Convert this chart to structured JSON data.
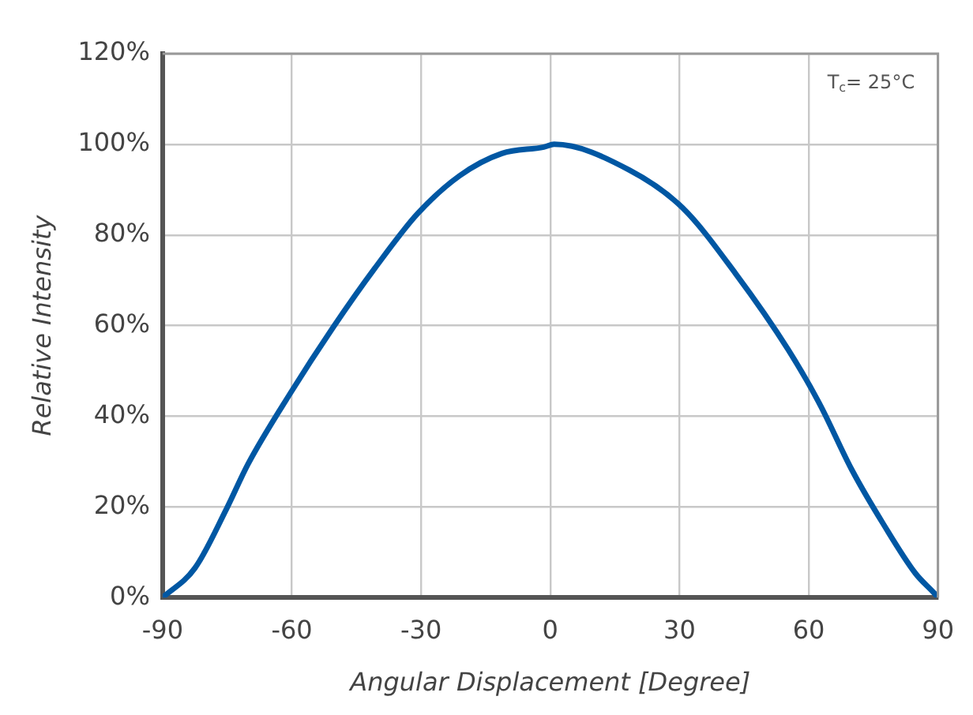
{
  "chart_data": {
    "type": "line",
    "xlabel": "Angular Displacement [Degree]",
    "ylabel": "Relative Intensity",
    "x": [
      -90,
      -82.5,
      -75.1,
      -70.2,
      -60.4,
      -50.5,
      -40.7,
      -30.8,
      -21,
      -11.2,
      -1.5,
      0.9,
      18.4,
      30.7,
      43,
      55.3,
      62.6,
      70,
      77.4,
      84.8,
      89.1,
      90
    ],
    "series": [
      {
        "color": "#0057a3",
        "values": [
          0,
          6.5,
          19.7,
          29.4,
          45,
          59.5,
          72.7,
          84.7,
          93.1,
          98,
          99.4,
          100,
          94.3,
          86,
          71.5,
          54.6,
          42.6,
          28.2,
          16.1,
          5.3,
          1,
          0
        ]
      }
    ],
    "xlim": [
      -90,
      90
    ],
    "xticks": [
      -90,
      -60,
      -30,
      0,
      30,
      60,
      90
    ],
    "ylim": [
      0,
      120
    ],
    "yticks": [
      {
        "value": 0,
        "label": "0%"
      },
      {
        "value": 20,
        "label": "20%"
      },
      {
        "value": 40,
        "label": "40%"
      },
      {
        "value": 60,
        "label": "60%"
      },
      {
        "value": 80,
        "label": "80%"
      },
      {
        "value": 100,
        "label": "100%"
      },
      {
        "value": 120,
        "label": "120%"
      }
    ],
    "annotations": [
      "T$_{c}$= 25°C"
    ],
    "grid": true,
    "legend": false,
    "marker": "none",
    "line_style": "solid"
  }
}
